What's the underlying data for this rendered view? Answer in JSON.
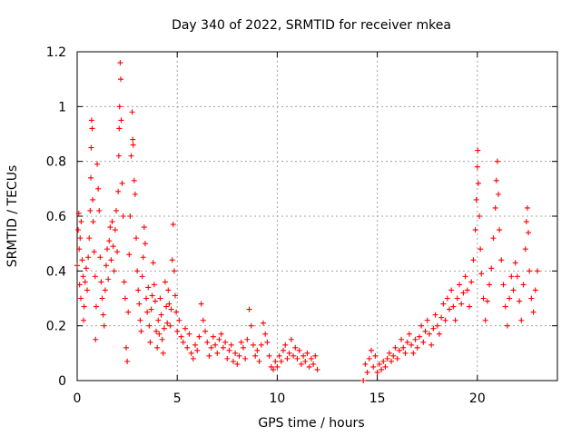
{
  "chart_data": {
    "type": "scatter",
    "title": "Day 340 of 2022, SRMTID for receiver mkea",
    "xlabel": "GPS time / hours",
    "ylabel": "SRMTID / TECUs",
    "xlim": [
      0,
      24
    ],
    "ylim": [
      0,
      1.2
    ],
    "x_ticks": [
      0,
      5,
      10,
      15,
      20
    ],
    "x_tick_labels": [
      "0",
      "5",
      "10",
      "15",
      "20"
    ],
    "y_ticks": [
      0,
      0.2,
      0.4,
      0.6,
      0.8,
      1.0,
      1.2
    ],
    "y_tick_labels": [
      "0",
      "0.2",
      "0.4",
      "0.6",
      "0.8",
      "1",
      "1.2"
    ],
    "grid": true,
    "marker": "plus",
    "color": "#ff0000",
    "series": [
      {
        "name": "SRMTID",
        "points": [
          [
            0.0,
            0.42
          ],
          [
            0.05,
            0.55
          ],
          [
            0.08,
            0.61
          ],
          [
            0.1,
            0.48
          ],
          [
            0.12,
            0.35
          ],
          [
            0.15,
            0.52
          ],
          [
            0.18,
            0.3
          ],
          [
            0.2,
            0.58
          ],
          [
            0.25,
            0.44
          ],
          [
            0.3,
            0.38
          ],
          [
            0.32,
            0.22
          ],
          [
            0.35,
            0.27
          ],
          [
            0.4,
            0.36
          ],
          [
            0.45,
            0.41
          ],
          [
            0.5,
            0.33
          ],
          [
            0.55,
            0.45
          ],
          [
            0.6,
            0.52
          ],
          [
            0.65,
            0.62
          ],
          [
            0.68,
            0.74
          ],
          [
            0.7,
            0.85
          ],
          [
            0.72,
            0.95
          ],
          [
            0.75,
            0.92
          ],
          [
            0.78,
            0.66
          ],
          [
            0.8,
            0.58
          ],
          [
            0.85,
            0.47
          ],
          [
            0.9,
            0.38
          ],
          [
            0.92,
            0.15
          ],
          [
            0.95,
            0.27
          ],
          [
            1.0,
            0.79
          ],
          [
            1.05,
            0.7
          ],
          [
            1.1,
            0.62
          ],
          [
            1.15,
            0.45
          ],
          [
            1.2,
            0.36
          ],
          [
            1.25,
            0.3
          ],
          [
            1.3,
            0.24
          ],
          [
            1.35,
            0.2
          ],
          [
            1.4,
            0.33
          ],
          [
            1.45,
            0.42
          ],
          [
            1.5,
            0.48
          ],
          [
            1.55,
            0.37
          ],
          [
            1.6,
            0.51
          ],
          [
            1.65,
            0.56
          ],
          [
            1.7,
            0.44
          ],
          [
            1.75,
            0.58
          ],
          [
            1.8,
            0.49
          ],
          [
            1.85,
            0.4
          ],
          [
            1.9,
            0.55
          ],
          [
            1.95,
            0.62
          ],
          [
            2.0,
            0.47
          ],
          [
            2.05,
            0.69
          ],
          [
            2.08,
            0.82
          ],
          [
            2.1,
            0.92
          ],
          [
            2.12,
            1.0
          ],
          [
            2.15,
            1.16
          ],
          [
            2.18,
            1.1
          ],
          [
            2.2,
            0.95
          ],
          [
            2.25,
            0.72
          ],
          [
            2.3,
            0.6
          ],
          [
            2.35,
            0.36
          ],
          [
            2.4,
            0.3
          ],
          [
            2.45,
            0.12
          ],
          [
            2.5,
            0.07
          ],
          [
            2.55,
            0.25
          ],
          [
            2.6,
            0.46
          ],
          [
            2.65,
            0.6
          ],
          [
            2.7,
            0.82
          ],
          [
            2.75,
            0.98
          ],
          [
            2.78,
            0.88
          ],
          [
            2.8,
            0.86
          ],
          [
            2.85,
            0.73
          ],
          [
            2.9,
            0.68
          ],
          [
            2.95,
            0.52
          ],
          [
            3.0,
            0.4
          ],
          [
            3.05,
            0.33
          ],
          [
            3.1,
            0.28
          ],
          [
            3.15,
            0.22
          ],
          [
            3.2,
            0.18
          ],
          [
            3.25,
            0.38
          ],
          [
            3.3,
            0.45
          ],
          [
            3.35,
            0.56
          ],
          [
            3.4,
            0.5
          ],
          [
            3.45,
            0.3
          ],
          [
            3.5,
            0.25
          ],
          [
            3.55,
            0.34
          ],
          [
            3.6,
            0.2
          ],
          [
            3.65,
            0.14
          ],
          [
            3.7,
            0.26
          ],
          [
            3.75,
            0.31
          ],
          [
            3.8,
            0.43
          ],
          [
            3.85,
            0.35
          ],
          [
            3.9,
            0.29
          ],
          [
            3.95,
            0.18
          ],
          [
            4.0,
            0.12
          ],
          [
            4.05,
            0.22
          ],
          [
            4.1,
            0.17
          ],
          [
            4.15,
            0.3
          ],
          [
            4.2,
            0.24
          ],
          [
            4.25,
            0.15
          ],
          [
            4.3,
            0.1
          ],
          [
            4.35,
            0.19
          ],
          [
            4.4,
            0.36
          ],
          [
            4.45,
            0.27
          ],
          [
            4.5,
            0.21
          ],
          [
            4.55,
            0.33
          ],
          [
            4.6,
            0.28
          ],
          [
            4.65,
            0.2
          ],
          [
            4.7,
            0.26
          ],
          [
            4.75,
            0.44
          ],
          [
            4.8,
            0.57
          ],
          [
            4.85,
            0.4
          ],
          [
            4.9,
            0.31
          ],
          [
            4.95,
            0.25
          ],
          [
            5.0,
            0.18
          ],
          [
            5.1,
            0.22
          ],
          [
            5.2,
            0.16
          ],
          [
            5.3,
            0.14
          ],
          [
            5.4,
            0.19
          ],
          [
            5.5,
            0.12
          ],
          [
            5.6,
            0.17
          ],
          [
            5.7,
            0.1
          ],
          [
            5.8,
            0.08
          ],
          [
            5.9,
            0.13
          ],
          [
            6.0,
            0.11
          ],
          [
            6.1,
            0.16
          ],
          [
            6.2,
            0.28
          ],
          [
            6.3,
            0.22
          ],
          [
            6.4,
            0.18
          ],
          [
            6.5,
            0.14
          ],
          [
            6.6,
            0.09
          ],
          [
            6.7,
            0.12
          ],
          [
            6.8,
            0.16
          ],
          [
            6.9,
            0.13
          ],
          [
            7.0,
            0.1
          ],
          [
            7.1,
            0.15
          ],
          [
            7.2,
            0.17
          ],
          [
            7.3,
            0.12
          ],
          [
            7.4,
            0.14
          ],
          [
            7.5,
            0.08
          ],
          [
            7.6,
            0.11
          ],
          [
            7.7,
            0.13
          ],
          [
            7.8,
            0.07
          ],
          [
            7.9,
            0.1
          ],
          [
            8.0,
            0.06
          ],
          [
            8.1,
            0.09
          ],
          [
            8.2,
            0.14
          ],
          [
            8.3,
            0.12
          ],
          [
            8.4,
            0.08
          ],
          [
            8.5,
            0.15
          ],
          [
            8.6,
            0.26
          ],
          [
            8.7,
            0.2
          ],
          [
            8.8,
            0.13
          ],
          [
            8.9,
            0.09
          ],
          [
            9.0,
            0.11
          ],
          [
            9.1,
            0.07
          ],
          [
            9.2,
            0.13
          ],
          [
            9.3,
            0.21
          ],
          [
            9.4,
            0.17
          ],
          [
            9.5,
            0.14
          ],
          [
            9.6,
            0.09
          ],
          [
            9.7,
            0.05
          ],
          [
            9.8,
            0.04
          ],
          [
            9.9,
            0.07
          ],
          [
            10.0,
            0.05
          ],
          [
            10.1,
            0.09
          ],
          [
            10.2,
            0.07
          ],
          [
            10.3,
            0.11
          ],
          [
            10.4,
            0.13
          ],
          [
            10.5,
            0.08
          ],
          [
            10.6,
            0.1
          ],
          [
            10.7,
            0.15
          ],
          [
            10.8,
            0.09
          ],
          [
            10.9,
            0.12
          ],
          [
            11.0,
            0.08
          ],
          [
            11.1,
            0.11
          ],
          [
            11.2,
            0.06
          ],
          [
            11.3,
            0.09
          ],
          [
            11.4,
            0.07
          ],
          [
            11.5,
            0.1
          ],
          [
            11.6,
            0.05
          ],
          [
            11.7,
            0.08
          ],
          [
            11.8,
            0.06
          ],
          [
            11.9,
            0.09
          ],
          [
            12.0,
            0.04
          ],
          [
            14.3,
            0.0
          ],
          [
            14.4,
            0.06
          ],
          [
            14.5,
            0.03
          ],
          [
            14.6,
            0.08
          ],
          [
            14.7,
            0.11
          ],
          [
            14.8,
            0.05
          ],
          [
            14.9,
            0.09
          ],
          [
            15.0,
            0.03
          ],
          [
            15.1,
            0.06
          ],
          [
            15.2,
            0.04
          ],
          [
            15.3,
            0.07
          ],
          [
            15.4,
            0.05
          ],
          [
            15.5,
            0.08
          ],
          [
            15.6,
            0.1
          ],
          [
            15.7,
            0.07
          ],
          [
            15.8,
            0.09
          ],
          [
            15.9,
            0.12
          ],
          [
            16.0,
            0.08
          ],
          [
            16.1,
            0.11
          ],
          [
            16.2,
            0.15
          ],
          [
            16.3,
            0.12
          ],
          [
            16.4,
            0.1
          ],
          [
            16.5,
            0.14
          ],
          [
            16.6,
            0.17
          ],
          [
            16.7,
            0.13
          ],
          [
            16.8,
            0.1
          ],
          [
            16.9,
            0.15
          ],
          [
            17.0,
            0.12
          ],
          [
            17.1,
            0.16
          ],
          [
            17.2,
            0.2
          ],
          [
            17.3,
            0.14
          ],
          [
            17.4,
            0.18
          ],
          [
            17.5,
            0.22
          ],
          [
            17.6,
            0.17
          ],
          [
            17.7,
            0.13
          ],
          [
            17.8,
            0.19
          ],
          [
            17.9,
            0.24
          ],
          [
            18.0,
            0.2
          ],
          [
            18.1,
            0.17
          ],
          [
            18.2,
            0.23
          ],
          [
            18.3,
            0.28
          ],
          [
            18.4,
            0.22
          ],
          [
            18.5,
            0.3
          ],
          [
            18.6,
            0.26
          ],
          [
            18.7,
            0.33
          ],
          [
            18.8,
            0.27
          ],
          [
            18.9,
            0.22
          ],
          [
            19.0,
            0.3
          ],
          [
            19.1,
            0.35
          ],
          [
            19.2,
            0.28
          ],
          [
            19.3,
            0.32
          ],
          [
            19.4,
            0.38
          ],
          [
            19.5,
            0.33
          ],
          [
            19.6,
            0.27
          ],
          [
            19.7,
            0.36
          ],
          [
            19.8,
            0.44
          ],
          [
            19.9,
            0.55
          ],
          [
            19.95,
            0.66
          ],
          [
            20.0,
            0.78
          ],
          [
            20.02,
            0.84
          ],
          [
            20.05,
            0.72
          ],
          [
            20.1,
            0.6
          ],
          [
            20.15,
            0.48
          ],
          [
            20.2,
            0.39
          ],
          [
            20.3,
            0.3
          ],
          [
            20.4,
            0.22
          ],
          [
            20.5,
            0.29
          ],
          [
            20.6,
            0.35
          ],
          [
            20.7,
            0.41
          ],
          [
            20.8,
            0.52
          ],
          [
            20.9,
            0.63
          ],
          [
            20.95,
            0.73
          ],
          [
            21.0,
            0.8
          ],
          [
            21.05,
            0.68
          ],
          [
            21.1,
            0.55
          ],
          [
            21.2,
            0.44
          ],
          [
            21.3,
            0.35
          ],
          [
            21.4,
            0.27
          ],
          [
            21.5,
            0.2
          ],
          [
            21.6,
            0.3
          ],
          [
            21.7,
            0.38
          ],
          [
            21.8,
            0.33
          ],
          [
            21.9,
            0.43
          ],
          [
            22.0,
            0.38
          ],
          [
            22.1,
            0.29
          ],
          [
            22.2,
            0.22
          ],
          [
            22.3,
            0.35
          ],
          [
            22.4,
            0.48
          ],
          [
            22.45,
            0.58
          ],
          [
            22.5,
            0.63
          ],
          [
            22.55,
            0.54
          ],
          [
            22.6,
            0.4
          ],
          [
            22.7,
            0.3
          ],
          [
            22.8,
            0.25
          ],
          [
            22.9,
            0.33
          ],
          [
            23.0,
            0.4
          ]
        ]
      }
    ]
  }
}
